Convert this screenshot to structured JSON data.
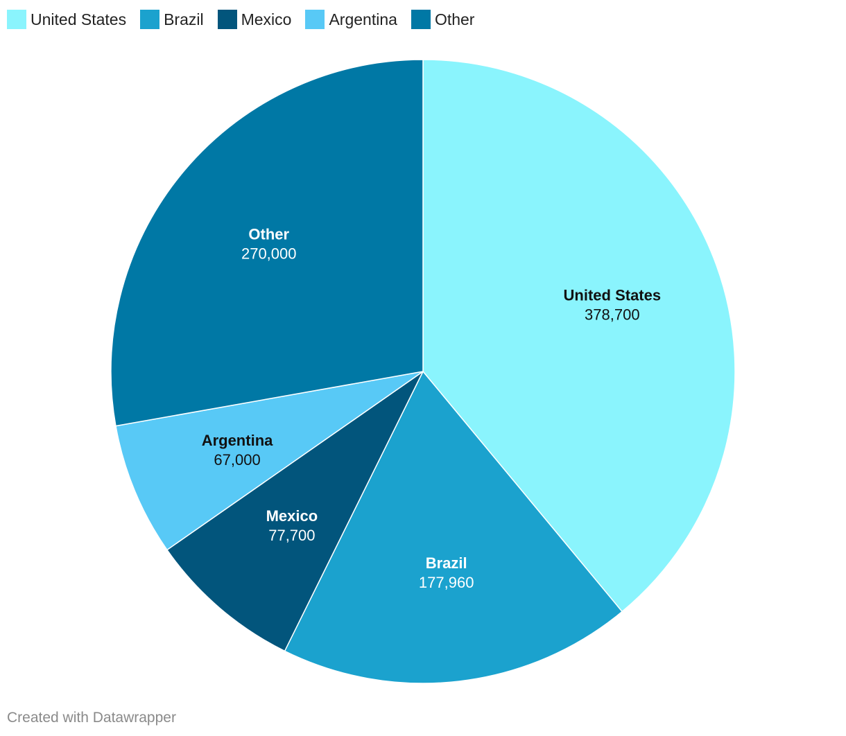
{
  "chart_data": {
    "type": "pie",
    "title": "",
    "legend_position": "top-left",
    "categories": [
      "United States",
      "Brazil",
      "Mexico",
      "Argentina",
      "Other"
    ],
    "values": [
      378700,
      177960,
      77700,
      67000,
      270000
    ],
    "value_labels": [
      "378,700",
      "177,960",
      "77,700",
      "67,000",
      "270,000"
    ],
    "colors": [
      "#8af4fd",
      "#1ba2ce",
      "#02557c",
      "#58c9f6",
      "#0078a5"
    ],
    "label_colors": [
      "#111111",
      "#ffffff",
      "#ffffff",
      "#111111",
      "#ffffff"
    ]
  },
  "footer": {
    "credit": "Created with Datawrapper"
  }
}
